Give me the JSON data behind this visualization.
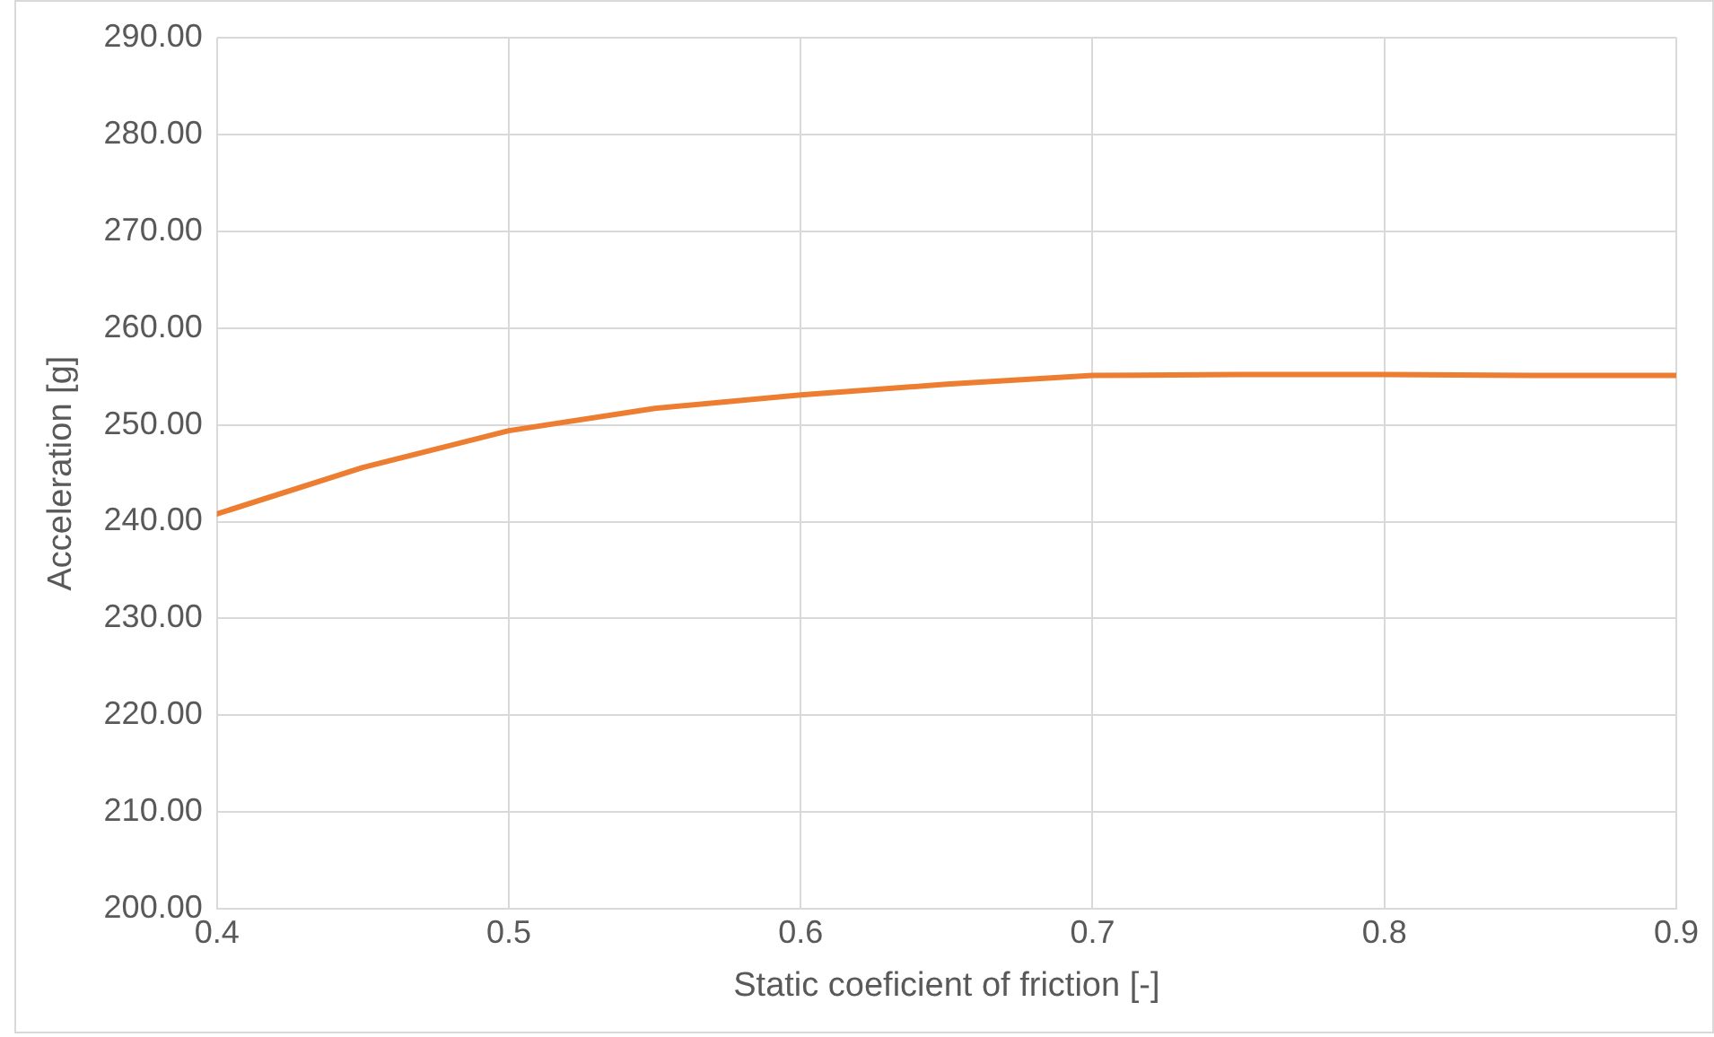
{
  "chart_data": {
    "type": "line",
    "xlabel": "Static coeficient of friction [-]",
    "ylabel": "Acceleration [g]",
    "x": [
      0.4,
      0.45,
      0.5,
      0.55,
      0.6,
      0.65,
      0.7,
      0.75,
      0.8,
      0.85,
      0.9
    ],
    "series": [
      {
        "color": "#ed7d31",
        "values": [
          240.8,
          245.6,
          249.4,
          251.7,
          253.1,
          254.2,
          255.1,
          255.2,
          255.2,
          255.1,
          255.1
        ]
      }
    ],
    "xlim": [
      0.4,
      0.9
    ],
    "xticks": [
      0.4,
      0.5,
      0.6,
      0.7,
      0.8,
      0.9
    ],
    "ylim": [
      200,
      290
    ],
    "yticks": [
      {
        "value": 200,
        "label": "200.00"
      },
      {
        "value": 210,
        "label": "210.00"
      },
      {
        "value": 220,
        "label": "220.00"
      },
      {
        "value": 230,
        "label": "230.00"
      },
      {
        "value": 240,
        "label": "240.00"
      },
      {
        "value": 250,
        "label": "250.00"
      },
      {
        "value": 260,
        "label": "260.00"
      },
      {
        "value": 270,
        "label": "270.00"
      },
      {
        "value": 280,
        "label": "280.00"
      },
      {
        "value": 290,
        "label": "290.00"
      }
    ],
    "grid": true,
    "legend": false,
    "marker": "none",
    "line_style": "solid"
  }
}
